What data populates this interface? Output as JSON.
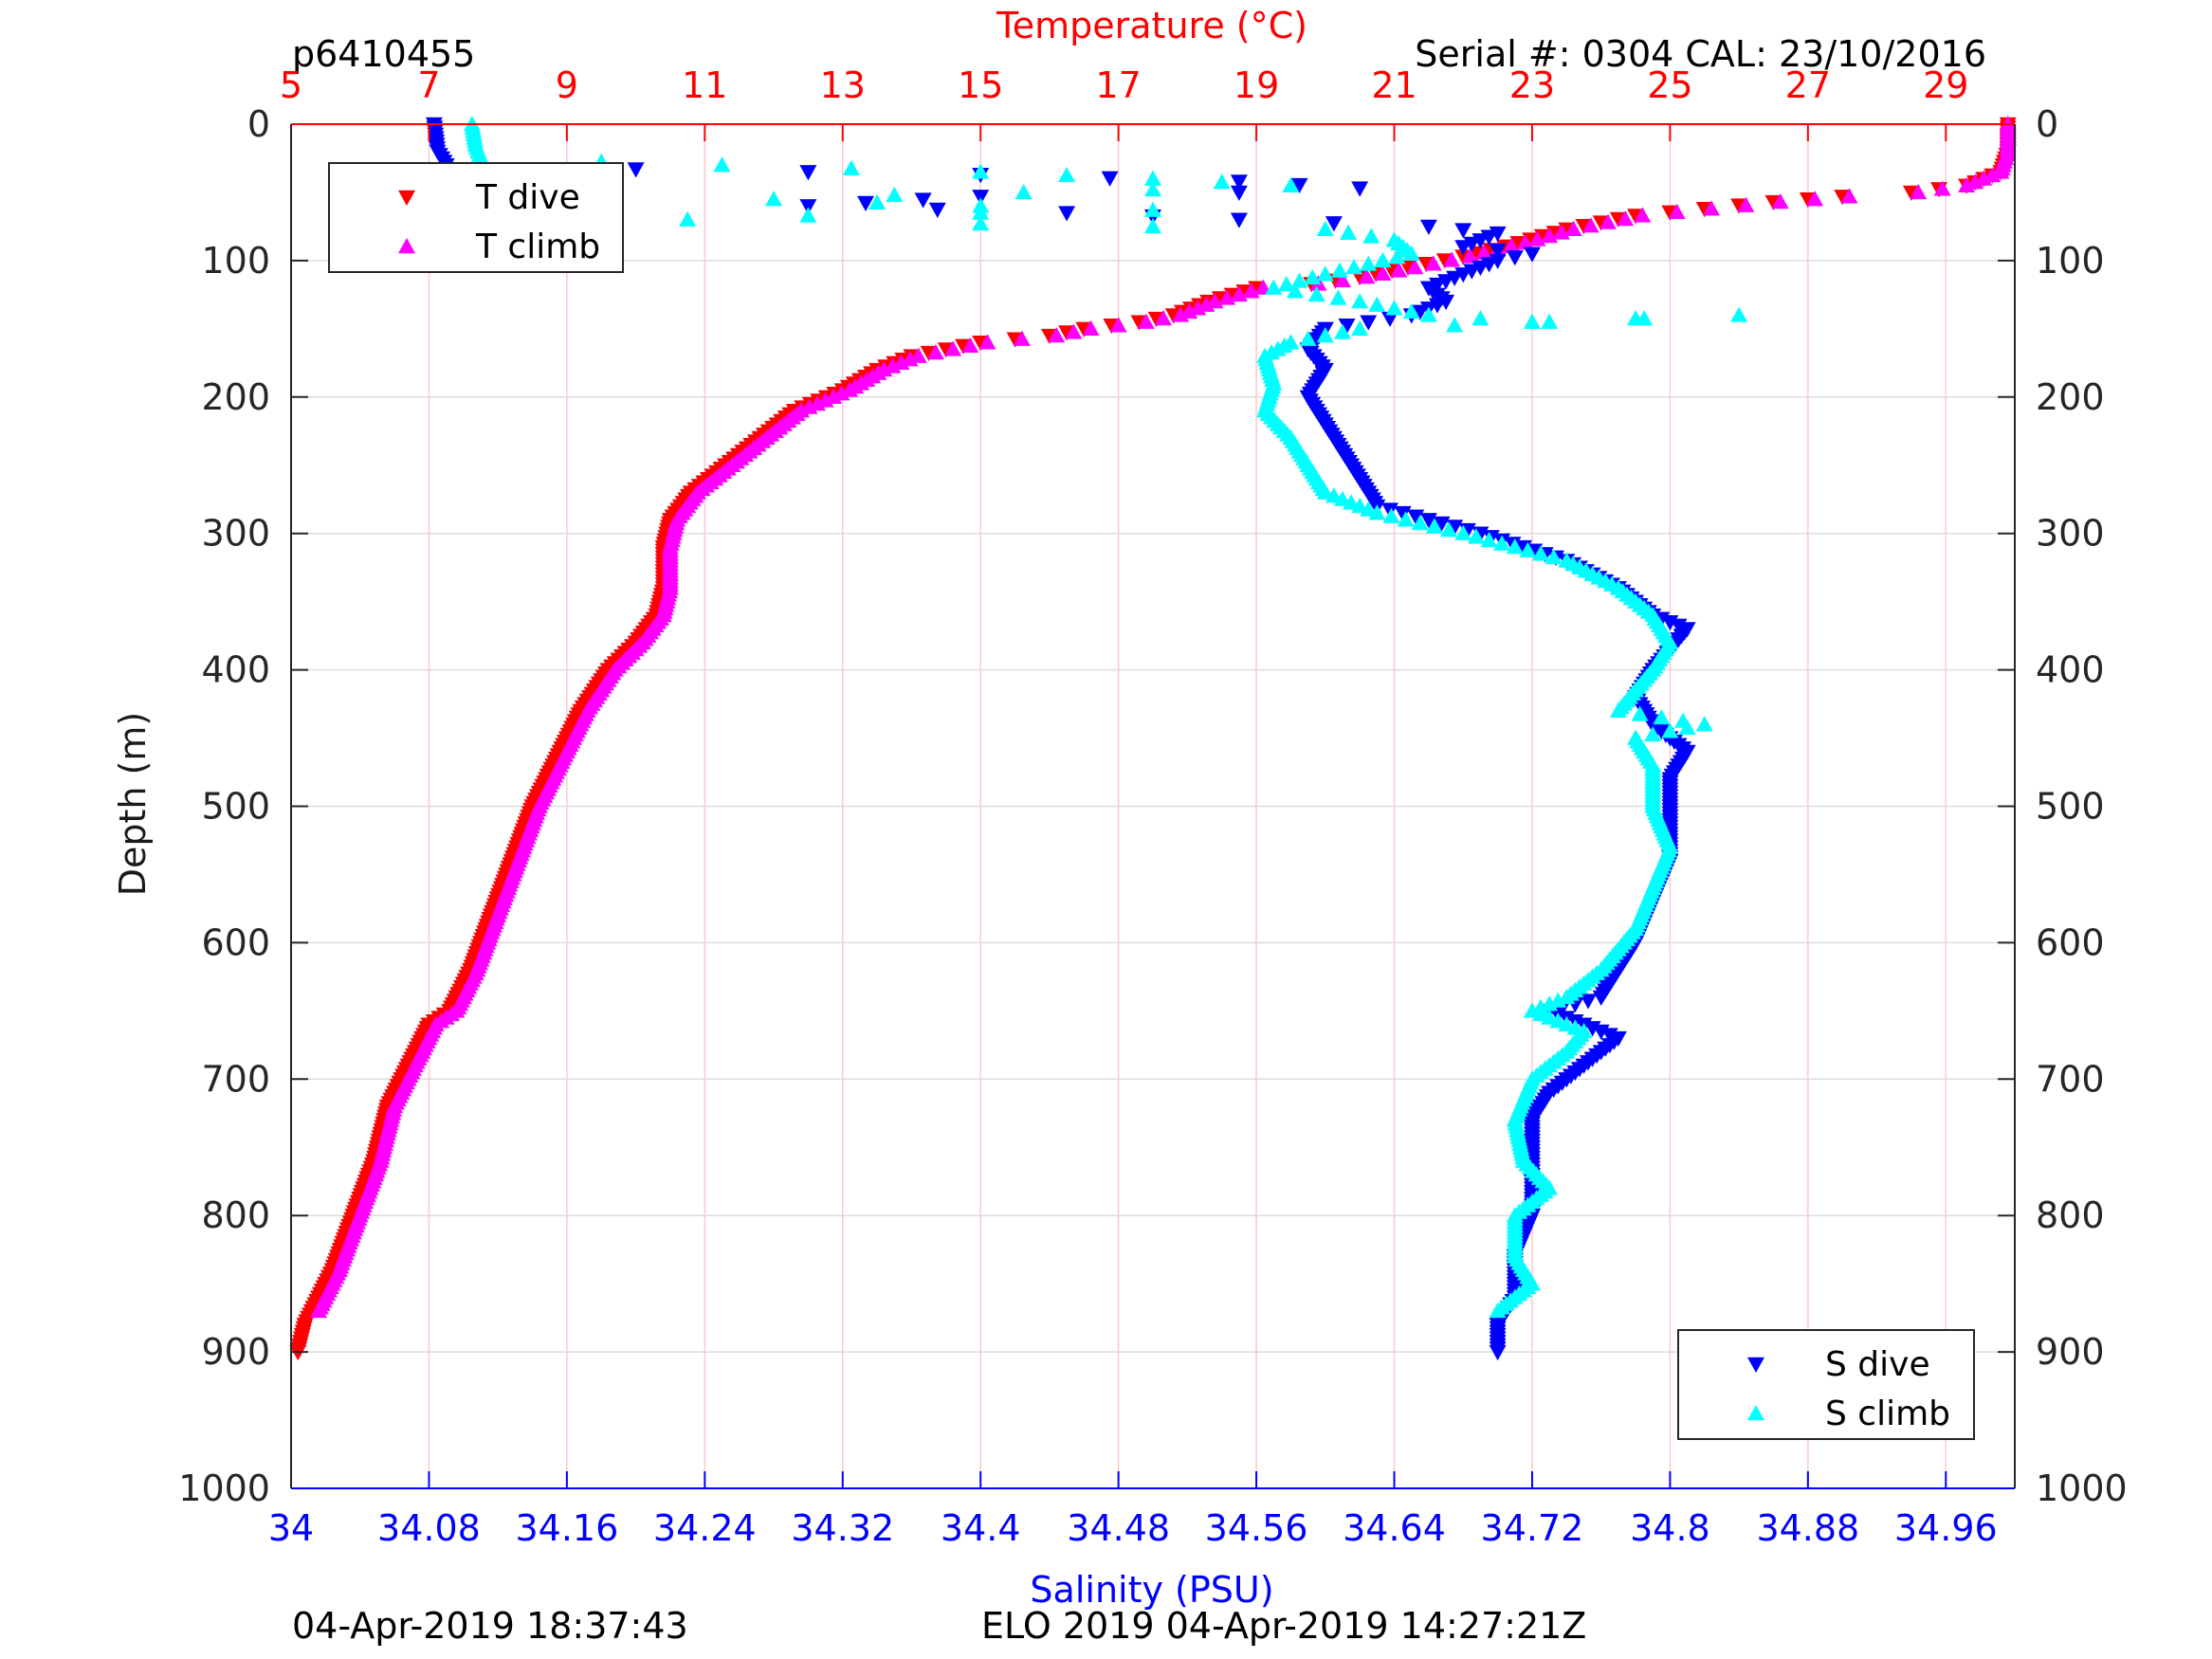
{
  "header": {
    "profile_id": "p6410455",
    "serial": "Serial #: 0304  CAL: 23/10/2016"
  },
  "footer": {
    "left": "04-Apr-2019 18:37:43",
    "center": "ELO 2019 04-Apr-2019 14:27:21Z"
  },
  "colors": {
    "t_dive": "#ff0000",
    "t_climb": "#ff00ff",
    "s_dive": "#0000ff",
    "s_climb": "#00ffff",
    "temperature_axis": "#ff0000",
    "salinity_axis": "#0000ff",
    "temperature_grid": "#ffc8c8",
    "depth_grid": "#dcdcdc"
  },
  "chart_data": {
    "type": "scatter",
    "y_axis": {
      "label": "Depth (m)",
      "range": [
        0,
        1000
      ],
      "reversed": true,
      "ticks": [
        0,
        100,
        200,
        300,
        400,
        500,
        600,
        700,
        800,
        900,
        1000
      ]
    },
    "x_axis_top": {
      "label": "Temperature (°C)",
      "range": [
        5,
        30
      ],
      "ticks": [
        5,
        7,
        9,
        11,
        13,
        15,
        17,
        19,
        21,
        23,
        25,
        27,
        29
      ]
    },
    "x_axis_bottom": {
      "label": "Salinity (PSU)",
      "range": [
        34,
        35
      ],
      "ticks": [
        "34",
        "34.08",
        "34.16",
        "34.24",
        "34.32",
        "34.4",
        "34.48",
        "34.56",
        "34.64",
        "34.72",
        "34.8",
        "34.88",
        "34.96"
      ]
    },
    "grid": true,
    "legends": [
      {
        "position": "top-left",
        "entries": [
          {
            "label": "T dive",
            "series": "t_dive",
            "marker": "triangle-down"
          },
          {
            "label": "T climb",
            "series": "t_climb",
            "marker": "triangle-up"
          }
        ]
      },
      {
        "position": "bottom-right",
        "entries": [
          {
            "label": "S dive",
            "series": "s_dive",
            "marker": "triangle-down"
          },
          {
            "label": "S climb",
            "series": "s_climb",
            "marker": "triangle-up"
          }
        ]
      }
    ],
    "series": {
      "t_dive": {
        "axis": "temperature",
        "marker": "triangle-down",
        "points": [
          [
            29.9,
            0
          ],
          [
            29.9,
            20
          ],
          [
            29.8,
            35
          ],
          [
            29.3,
            45
          ],
          [
            28.5,
            50
          ],
          [
            27.5,
            53
          ],
          [
            26.5,
            57
          ],
          [
            25.5,
            62
          ],
          [
            24.5,
            67
          ],
          [
            23.5,
            77
          ],
          [
            22.8,
            87
          ],
          [
            22.0,
            97
          ],
          [
            21.2,
            105
          ],
          [
            20.5,
            112
          ],
          [
            19.8,
            117
          ],
          [
            19.0,
            120
          ],
          [
            18.3,
            130
          ],
          [
            17.8,
            140
          ],
          [
            17.3,
            145
          ],
          [
            16.5,
            150
          ],
          [
            16.0,
            155
          ],
          [
            15.0,
            160
          ],
          [
            14.0,
            170
          ],
          [
            13.5,
            180
          ],
          [
            13.0,
            195
          ],
          [
            12.3,
            210
          ],
          [
            11.8,
            230
          ],
          [
            11.3,
            250
          ],
          [
            10.8,
            270
          ],
          [
            10.5,
            290
          ],
          [
            10.4,
            310
          ],
          [
            10.4,
            340
          ],
          [
            10.3,
            360
          ],
          [
            10.0,
            380
          ],
          [
            9.6,
            400
          ],
          [
            9.2,
            430
          ],
          [
            8.8,
            470
          ],
          [
            8.5,
            500
          ],
          [
            8.2,
            540
          ],
          [
            7.9,
            580
          ],
          [
            7.6,
            620
          ],
          [
            7.3,
            650
          ],
          [
            7.0,
            660
          ],
          [
            6.7,
            690
          ],
          [
            6.4,
            720
          ],
          [
            6.2,
            760
          ],
          [
            5.9,
            800
          ],
          [
            5.6,
            840
          ],
          [
            5.2,
            880
          ],
          [
            5.1,
            900
          ]
        ]
      },
      "t_climb": {
        "axis": "temperature",
        "marker": "triangle-up",
        "points": [
          [
            29.9,
            0
          ],
          [
            29.9,
            20
          ],
          [
            29.8,
            35
          ],
          [
            29.3,
            45
          ],
          [
            28.6,
            50
          ],
          [
            27.6,
            53
          ],
          [
            26.6,
            57
          ],
          [
            25.6,
            62
          ],
          [
            24.6,
            67
          ],
          [
            23.6,
            77
          ],
          [
            22.9,
            87
          ],
          [
            22.1,
            97
          ],
          [
            21.3,
            105
          ],
          [
            20.6,
            112
          ],
          [
            19.9,
            117
          ],
          [
            19.1,
            120
          ],
          [
            18.4,
            130
          ],
          [
            17.9,
            140
          ],
          [
            17.4,
            145
          ],
          [
            16.6,
            150
          ],
          [
            16.1,
            155
          ],
          [
            15.1,
            160
          ],
          [
            14.1,
            170
          ],
          [
            13.6,
            180
          ],
          [
            13.1,
            195
          ],
          [
            12.4,
            210
          ],
          [
            11.9,
            230
          ],
          [
            11.4,
            250
          ],
          [
            10.9,
            270
          ],
          [
            10.6,
            290
          ],
          [
            10.5,
            310
          ],
          [
            10.5,
            340
          ],
          [
            10.4,
            360
          ],
          [
            10.1,
            380
          ],
          [
            9.7,
            400
          ],
          [
            9.3,
            430
          ],
          [
            8.9,
            470
          ],
          [
            8.6,
            500
          ],
          [
            8.3,
            540
          ],
          [
            8.0,
            580
          ],
          [
            7.7,
            620
          ],
          [
            7.4,
            650
          ],
          [
            7.1,
            660
          ],
          [
            6.8,
            690
          ],
          [
            6.5,
            720
          ],
          [
            6.3,
            760
          ],
          [
            6.0,
            800
          ],
          [
            5.7,
            840
          ],
          [
            5.4,
            870
          ]
        ]
      },
      "s_dive": {
        "axis": "salinity",
        "marker": "triangle-down",
        "points": [
          [
            34.083,
            0
          ],
          [
            34.085,
            20
          ],
          [
            34.09,
            30
          ],
          [
            34.2,
            33
          ],
          [
            34.4,
            37
          ],
          [
            34.55,
            42
          ],
          [
            34.62,
            47
          ],
          [
            34.55,
            50
          ],
          [
            34.4,
            53
          ],
          [
            34.3,
            60
          ],
          [
            34.45,
            65
          ],
          [
            34.55,
            70
          ],
          [
            34.66,
            75
          ],
          [
            34.7,
            80
          ],
          [
            34.68,
            90
          ],
          [
            34.72,
            95
          ],
          [
            34.7,
            100
          ],
          [
            34.69,
            105
          ],
          [
            34.66,
            120
          ],
          [
            34.67,
            130
          ],
          [
            34.65,
            140
          ],
          [
            34.6,
            150
          ],
          [
            34.59,
            165
          ],
          [
            34.6,
            180
          ],
          [
            34.59,
            200
          ],
          [
            34.6,
            220
          ],
          [
            34.61,
            240
          ],
          [
            34.62,
            260
          ],
          [
            34.63,
            280
          ],
          [
            34.66,
            290
          ],
          [
            34.69,
            300
          ],
          [
            34.74,
            320
          ],
          [
            34.77,
            340
          ],
          [
            34.79,
            360
          ],
          [
            34.81,
            370
          ],
          [
            34.8,
            385
          ],
          [
            34.79,
            400
          ],
          [
            34.78,
            420
          ],
          [
            34.79,
            440
          ],
          [
            34.81,
            460
          ],
          [
            34.8,
            480
          ],
          [
            34.8,
            500
          ],
          [
            34.8,
            540
          ],
          [
            34.79,
            570
          ],
          [
            34.78,
            600
          ],
          [
            34.77,
            620
          ],
          [
            34.76,
            640
          ],
          [
            34.73,
            650
          ],
          [
            34.75,
            660
          ],
          [
            34.77,
            670
          ],
          [
            34.75,
            690
          ],
          [
            34.73,
            710
          ],
          [
            34.72,
            730
          ],
          [
            34.72,
            750
          ],
          [
            34.72,
            770
          ],
          [
            34.72,
            800
          ],
          [
            34.71,
            830
          ],
          [
            34.71,
            860
          ],
          [
            34.7,
            880
          ],
          [
            34.7,
            900
          ]
        ]
      },
      "s_climb": {
        "axis": "salinity",
        "marker": "triangle-up",
        "points": [
          [
            34.105,
            0
          ],
          [
            34.107,
            15
          ],
          [
            34.11,
            25
          ],
          [
            34.25,
            30
          ],
          [
            34.4,
            35
          ],
          [
            34.5,
            40
          ],
          [
            34.58,
            45
          ],
          [
            34.5,
            48
          ],
          [
            34.35,
            52
          ],
          [
            34.28,
            55
          ],
          [
            34.4,
            60
          ],
          [
            34.5,
            63
          ],
          [
            34.3,
            67
          ],
          [
            34.23,
            70
          ],
          [
            34.4,
            73
          ],
          [
            34.6,
            77
          ],
          [
            34.64,
            85
          ],
          [
            34.65,
            95
          ],
          [
            34.6,
            110
          ],
          [
            34.57,
            120
          ],
          [
            34.62,
            130
          ],
          [
            34.66,
            140
          ],
          [
            34.72,
            145
          ],
          [
            34.84,
            140
          ],
          [
            34.62,
            150
          ],
          [
            34.58,
            160
          ],
          [
            34.565,
            170
          ],
          [
            34.57,
            190
          ],
          [
            34.565,
            210
          ],
          [
            34.58,
            230
          ],
          [
            34.59,
            250
          ],
          [
            34.6,
            270
          ],
          [
            34.63,
            285
          ],
          [
            34.68,
            300
          ],
          [
            34.74,
            320
          ],
          [
            34.77,
            340
          ],
          [
            34.79,
            360
          ],
          [
            34.8,
            380
          ],
          [
            34.79,
            400
          ],
          [
            34.77,
            430
          ],
          [
            34.82,
            440
          ],
          [
            34.78,
            450
          ],
          [
            34.79,
            470
          ],
          [
            34.79,
            500
          ],
          [
            34.8,
            530
          ],
          [
            34.79,
            560
          ],
          [
            34.78,
            590
          ],
          [
            34.76,
            620
          ],
          [
            34.74,
            640
          ],
          [
            34.72,
            650
          ],
          [
            34.75,
            665
          ],
          [
            34.74,
            680
          ],
          [
            34.72,
            700
          ],
          [
            34.71,
            730
          ],
          [
            34.715,
            760
          ],
          [
            34.73,
            780
          ],
          [
            34.71,
            800
          ],
          [
            34.71,
            830
          ],
          [
            34.72,
            850
          ],
          [
            34.7,
            870
          ]
        ]
      }
    }
  }
}
